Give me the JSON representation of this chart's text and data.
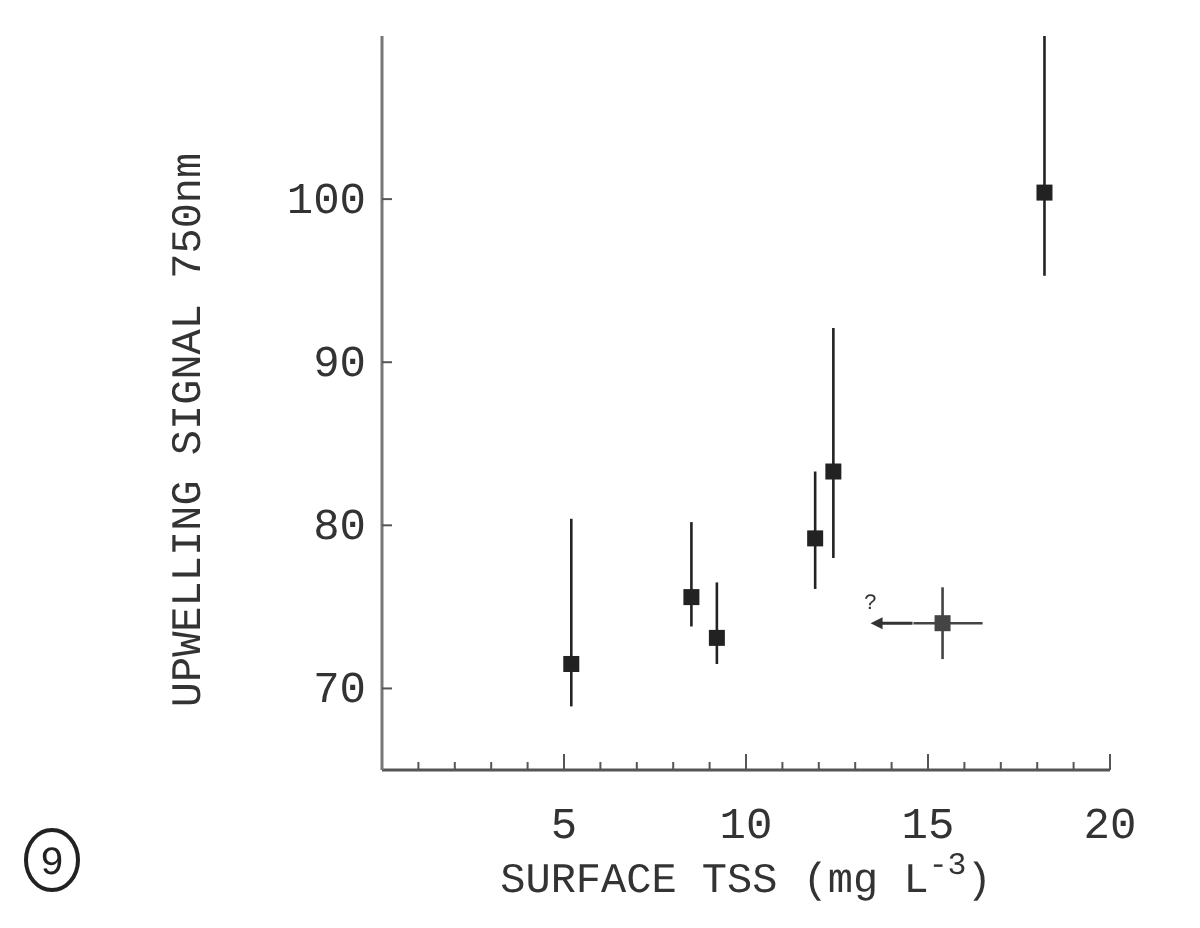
{
  "chart_data": {
    "type": "scatter",
    "xlabel": "SURFACE TSS (mg L$^{-3}$)",
    "ylabel": "UPWELLING SIGNAL 750nm",
    "xlim": [
      0,
      20
    ],
    "ylim": [
      65,
      110
    ],
    "xticks": [
      {
        "value": 1,
        "label": null
      },
      {
        "value": 2,
        "label": null
      },
      {
        "value": 3,
        "label": null
      },
      {
        "value": 4,
        "label": null
      },
      5,
      {
        "value": 6,
        "label": null
      },
      {
        "value": 7,
        "label": null
      },
      {
        "value": 8,
        "label": null
      },
      {
        "value": 9,
        "label": null
      },
      10,
      {
        "value": 11,
        "label": null
      },
      {
        "value": 12,
        "label": null
      },
      {
        "value": 13,
        "label": null
      },
      {
        "value": 14,
        "label": null
      },
      15,
      {
        "value": 16,
        "label": null
      },
      {
        "value": 17,
        "label": null
      },
      {
        "value": 18,
        "label": null
      },
      {
        "value": 19,
        "label": null
      },
      20
    ],
    "yticks": [
      70,
      80,
      90,
      100
    ],
    "marker": "square",
    "grid": false,
    "series": [
      {
        "color": "#222222",
        "x": [
          5.2,
          8.5,
          9.2,
          11.9,
          12.4,
          18.2
        ],
        "values": [
          71.5,
          75.6,
          73.1,
          79.2,
          83.3,
          100.4
        ],
        "errors": [
          [
            68.9,
            80.4
          ],
          [
            73.8,
            80.2
          ],
          [
            71.5,
            76.5
          ],
          [
            76.1,
            83.3
          ],
          [
            78.0,
            92.1
          ],
          [
            95.3,
            110
          ]
        ]
      },
      {
        "color": "#444444",
        "x": [
          15.4
        ],
        "values": [
          74.0
        ],
        "errors": [
          [
            71.8,
            76.2
          ]
        ],
        "xerrors": [
          [
            14.6,
            16.5
          ]
        ]
      }
    ],
    "annotations": [
      "?",
      "9"
    ]
  }
}
